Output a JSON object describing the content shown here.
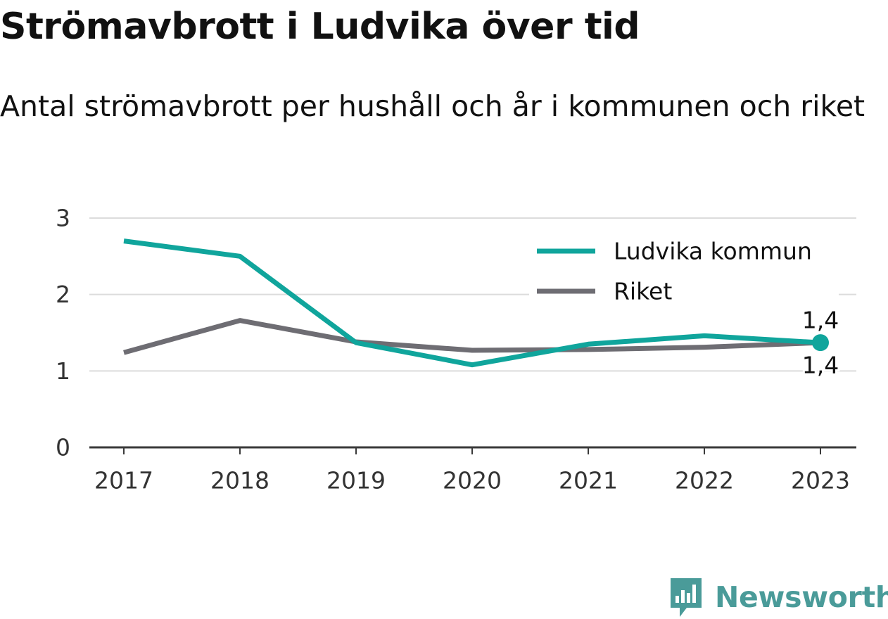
{
  "title": "Strömavbrott i Ludvika över tid",
  "subtitle": "Antal strömavbrott per hushåll och år i kommunen och riket",
  "brand": {
    "name": "Newsworthy",
    "color": "#4a9b99",
    "icon": "bar-chart-speech-bubble-icon"
  },
  "chart_data": {
    "type": "line",
    "x": [
      "2017",
      "2018",
      "2019",
      "2020",
      "2021",
      "2022",
      "2023"
    ],
    "series": [
      {
        "name": "Ludvika kommun",
        "color": "#10a59c",
        "values": [
          2.7,
          2.5,
          1.37,
          1.08,
          1.35,
          1.46,
          1.37
        ]
      },
      {
        "name": "Riket",
        "color": "#6e6d73",
        "values": [
          1.24,
          1.66,
          1.38,
          1.27,
          1.28,
          1.31,
          1.37
        ]
      }
    ],
    "ylim": [
      0,
      3
    ],
    "yticks": [
      "0",
      "1",
      "2",
      "3"
    ],
    "end_labels": [
      "1,4",
      "1,4"
    ],
    "xlabel": "",
    "ylabel": "",
    "grid": true,
    "legend_position": "top-right"
  }
}
